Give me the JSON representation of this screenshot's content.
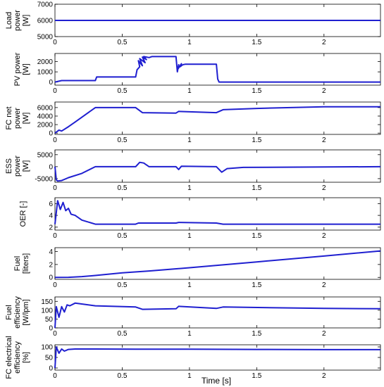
{
  "figure": {
    "xlabel": "Time [s]",
    "line_color": "#1f1fd0"
  },
  "chart_data": [
    {
      "type": "line",
      "ylabel_lines": [
        "Load",
        "power",
        "[W]"
      ],
      "xlim": [
        0,
        2.42
      ],
      "ylim": [
        5000,
        7000
      ],
      "yticks": [
        5000,
        6000,
        7000
      ],
      "xticks": [
        0,
        0.5,
        1,
        1.5,
        2
      ],
      "xtick_labels": [
        "0",
        "0.5",
        "1",
        "1.5",
        "2"
      ],
      "show_xtick_labels": true,
      "grid": false,
      "series": [
        {
          "x": [
            0,
            2.42
          ],
          "y": [
            6000,
            6000
          ]
        }
      ]
    },
    {
      "type": "line",
      "ylabel_lines": [
        "PV power",
        "[W]"
      ],
      "xlim": [
        0,
        2.42
      ],
      "ylim": [
        -300,
        2800
      ],
      "yticks": [
        0,
        1000,
        2000
      ],
      "xticks": [
        0,
        0.5,
        1,
        1.5,
        2
      ],
      "xtick_labels": [
        "0",
        "0.5",
        "1",
        "1.5",
        "2"
      ],
      "show_xtick_labels": true,
      "grid": false,
      "series": [
        {
          "x": [
            0,
            0.05,
            0.3,
            0.31,
            0.6,
            0.61,
            0.63,
            0.62,
            0.65,
            0.63,
            0.67,
            0.65,
            0.68,
            0.66,
            0.7,
            0.72,
            0.9,
            0.91,
            0.92,
            0.915,
            0.94,
            0.93,
            0.95,
            0.97,
            1.2,
            1.21,
            1.22,
            2.42
          ],
          "y": [
            0,
            150,
            150,
            500,
            500,
            1200,
            1500,
            2100,
            1600,
            2300,
            1900,
            2450,
            2200,
            2500,
            2400,
            2500,
            2500,
            1000,
            1700,
            1300,
            1800,
            1500,
            1700,
            1750,
            1750,
            300,
            0,
            0
          ]
        }
      ]
    },
    {
      "type": "line",
      "ylabel_lines": [
        "FC net",
        "power",
        "[W]"
      ],
      "xlim": [
        0,
        2.42
      ],
      "ylim": [
        -300,
        7300
      ],
      "yticks": [
        0,
        2000,
        4000,
        6000
      ],
      "xticks": [
        0,
        0.5,
        1,
        1.5,
        2
      ],
      "xtick_labels": [
        "0",
        "0.5",
        "1",
        "1.5",
        "2"
      ],
      "show_xtick_labels": true,
      "grid": false,
      "series": [
        {
          "x": [
            0,
            0.03,
            0.05,
            0.1,
            0.15,
            0.3,
            0.6,
            0.65,
            0.9,
            0.92,
            1.2,
            1.25,
            1.5,
            2.0,
            2.42
          ],
          "y": [
            0,
            700,
            500,
            1500,
            2600,
            6000,
            6000,
            4800,
            4700,
            5100,
            4800,
            5500,
            5800,
            6200,
            6200
          ]
        }
      ]
    },
    {
      "type": "line",
      "ylabel_lines": [
        "ESS",
        "power",
        "[W]"
      ],
      "xlim": [
        0,
        2.42
      ],
      "ylim": [
        -6500,
        7000
      ],
      "yticks": [
        -5000,
        0,
        5000
      ],
      "xticks": [
        0,
        0.5,
        1,
        1.5,
        2
      ],
      "xtick_labels": [
        "0",
        "0.5",
        "1",
        "1.5",
        "2"
      ],
      "show_xtick_labels": true,
      "grid": false,
      "series": [
        {
          "x": [
            0,
            0.01,
            0.02,
            0.05,
            0.1,
            0.2,
            0.3,
            0.6,
            0.63,
            0.66,
            0.7,
            0.9,
            0.92,
            0.94,
            1.2,
            1.24,
            1.28,
            1.4,
            2.42
          ],
          "y": [
            0,
            -5500,
            -6000,
            -5800,
            -4600,
            -2800,
            0,
            0,
            1800,
            1500,
            0,
            0,
            -1200,
            200,
            0,
            -2300,
            -800,
            -300,
            0
          ]
        }
      ]
    },
    {
      "type": "line",
      "ylabel_lines": [
        "OER [-]"
      ],
      "xlim": [
        0,
        2.42
      ],
      "ylim": [
        1.5,
        7
      ],
      "yticks": [
        2,
        4,
        6
      ],
      "xticks": [
        0,
        0.5,
        1,
        1.5,
        2
      ],
      "xtick_labels": [
        "0",
        "0.5",
        "1",
        "1.5",
        "2"
      ],
      "show_xtick_labels": true,
      "grid": false,
      "series": [
        {
          "x": [
            0,
            0.02,
            0.04,
            0.06,
            0.08,
            0.1,
            0.12,
            0.15,
            0.2,
            0.3,
            0.6,
            0.62,
            0.9,
            0.92,
            1.2,
            1.25,
            2.42
          ],
          "y": [
            2.5,
            6.5,
            5.0,
            6.2,
            4.8,
            5.2,
            4.2,
            4.0,
            3.2,
            2.5,
            2.5,
            2.7,
            2.7,
            2.8,
            2.7,
            2.5,
            2.5
          ]
        }
      ]
    },
    {
      "type": "line",
      "ylabel_lines": [
        "Fuel",
        "[liters]"
      ],
      "xlim": [
        0,
        2.42
      ],
      "ylim": [
        -0.3,
        4.6
      ],
      "yticks": [
        0,
        2,
        4
      ],
      "xticks": [
        0,
        0.5,
        1,
        1.5,
        2
      ],
      "xtick_labels": [
        "0",
        "0.5",
        "1",
        "1.5",
        "2"
      ],
      "show_xtick_labels": true,
      "grid": false,
      "series": [
        {
          "x": [
            0,
            0.1,
            0.2,
            0.3,
            0.5,
            0.7,
            1.0,
            1.5,
            2.0,
            2.42
          ],
          "y": [
            0,
            0.02,
            0.12,
            0.3,
            0.7,
            1.0,
            1.5,
            2.4,
            3.3,
            4.1
          ]
        }
      ]
    },
    {
      "type": "line",
      "ylabel_lines": [
        "Fuel",
        "efficiency",
        "[W/lpm]"
      ],
      "xlim": [
        0,
        2.42
      ],
      "ylim": [
        0,
        175
      ],
      "yticks": [
        0,
        50,
        100,
        150
      ],
      "xticks": [
        0,
        0.5,
        1,
        1.5,
        2
      ],
      "xtick_labels": [
        "0",
        "0.5",
        "1",
        "1.5",
        "2"
      ],
      "show_xtick_labels": true,
      "grid": false,
      "series": [
        {
          "x": [
            0,
            0.01,
            0.03,
            0.05,
            0.07,
            0.09,
            0.11,
            0.15,
            0.3,
            0.6,
            0.65,
            0.9,
            0.92,
            1.2,
            1.25,
            2.0,
            2.42
          ],
          "y": [
            0,
            120,
            60,
            120,
            90,
            130,
            125,
            140,
            125,
            118,
            105,
            108,
            122,
            110,
            118,
            110,
            108
          ]
        }
      ]
    },
    {
      "type": "line",
      "ylabel_lines": [
        "FC electrical",
        "efficiency",
        "[%]"
      ],
      "xlim": [
        0,
        2.42
      ],
      "ylim": [
        -10,
        110
      ],
      "yticks": [
        0,
        50,
        100
      ],
      "xticks": [
        0,
        0.5,
        1,
        1.5,
        2
      ],
      "xtick_labels": [
        "0",
        "0.5",
        "1",
        "1.5",
        "2"
      ],
      "show_xtick_labels": true,
      "grid": false,
      "series": [
        {
          "x": [
            0,
            0.01,
            0.03,
            0.05,
            0.07,
            0.1,
            0.15,
            0.3,
            0.6,
            1.0,
            1.5,
            2.0,
            2.42
          ],
          "y": [
            0,
            100,
            70,
            90,
            80,
            88,
            90,
            90,
            89,
            89,
            88,
            87,
            87
          ]
        }
      ]
    }
  ]
}
